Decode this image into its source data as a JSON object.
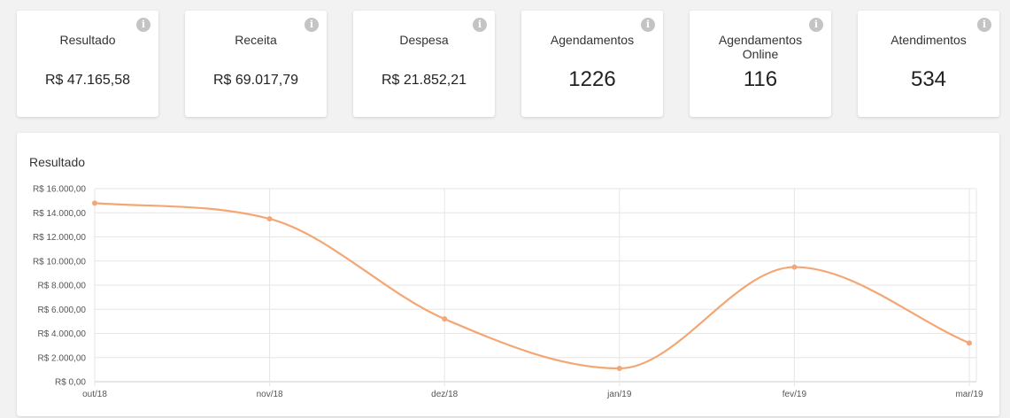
{
  "info_icon_glyph": "i",
  "cards": [
    {
      "label": "Resultado",
      "value": "R$ 47.165,58"
    },
    {
      "label": "Receita",
      "value": "R$ 69.017,79"
    },
    {
      "label": "Despesa",
      "value": "R$ 21.852,21"
    },
    {
      "label": "Agendamentos",
      "value": "1226"
    },
    {
      "label": "Agendamentos Online",
      "value": "116"
    },
    {
      "label": "Atendimentos",
      "value": "534"
    }
  ],
  "colors": {
    "line": "#f4a674",
    "grid": "#e6e6e6",
    "axis": "#999999"
  },
  "chart_data": {
    "type": "line",
    "title": "Resultado",
    "categories": [
      "out/18",
      "nov/18",
      "dez/18",
      "jan/19",
      "fev/19",
      "mar/19"
    ],
    "series": [
      {
        "values": [
          14800,
          13500,
          5200,
          1100,
          9500,
          3200
        ]
      }
    ],
    "ylim": [
      0,
      16000
    ],
    "y_ticks": [
      "R$ 0,00",
      "R$ 2.000,00",
      "R$ 4.000,00",
      "R$ 6.000,00",
      "R$ 8.000,00",
      "R$ 10.000,00",
      "R$ 12.000,00",
      "R$ 14.000,00",
      "R$ 16.000,00"
    ],
    "grid": true,
    "smooth": true
  }
}
